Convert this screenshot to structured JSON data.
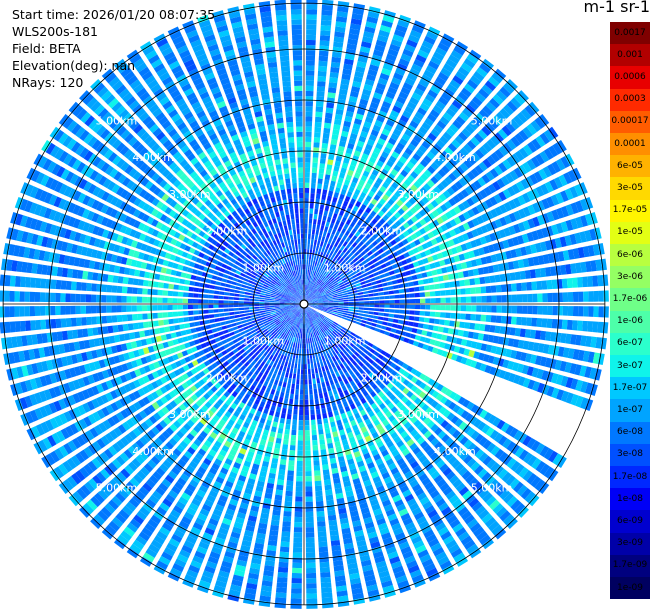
{
  "info": {
    "start_time": "Start time: 2026/01/20 08:07:35",
    "instrument": "WLS200s-181",
    "field": "Field: BETA",
    "elevation": "Elevation(deg): nan",
    "nrays": "NRays: 120"
  },
  "colorbar": {
    "title": "m-1 sr-1",
    "labels": [
      "0.0017",
      "0.001",
      "0.0006",
      "0.0003",
      "0.00017",
      "0.0001",
      "6e-05",
      "3e-05",
      "1.7e-05",
      "1e-05",
      "6e-06",
      "3e-06",
      "1.7e-06",
      "1e-06",
      "6e-07",
      "3e-07",
      "1.7e-07",
      "1e-07",
      "6e-08",
      "3e-08",
      "1.7e-08",
      "1e-08",
      "6e-09",
      "3e-09",
      "1.7e-09",
      "1e-09"
    ],
    "colors": [
      "#7f0000",
      "#b20000",
      "#e80000",
      "#ff2a00",
      "#ff5c00",
      "#ff8f00",
      "#ffb200",
      "#ffd900",
      "#fff500",
      "#e3ff14",
      "#b8ff3f",
      "#94ff63",
      "#6fff88",
      "#4dffa9",
      "#2bffcc",
      "#0ff4ea",
      "#00c8ff",
      "#00a4ff",
      "#0078ff",
      "#0050ff",
      "#0028ff",
      "#0000f6",
      "#0000cf",
      "#0000a8",
      "#00007f",
      "#000060"
    ]
  },
  "chart_data": {
    "type": "heatmap",
    "title": "",
    "projection": "polar (PPI scan)",
    "nrays": 120,
    "range_rings_km": [
      1,
      2,
      3,
      4,
      5
    ],
    "range_labels": [
      "1.00km",
      "2.00km",
      "3.00km",
      "4.00km",
      "5.00km"
    ],
    "max_range_km": 5.9,
    "blank_sector_deg": [
      112,
      120
    ],
    "value_structure": [
      {
        "range_km": [
          0,
          2.2
        ],
        "typical": "1e-08 to 3e-08"
      },
      {
        "range_km": [
          2.2,
          3.5
        ],
        "typical": "6e-08 to 1.7e-07",
        "peak": "3e-07"
      },
      {
        "range_km": [
          3.5,
          5.9
        ],
        "typical": "6e-08 to 1e-07"
      }
    ]
  }
}
